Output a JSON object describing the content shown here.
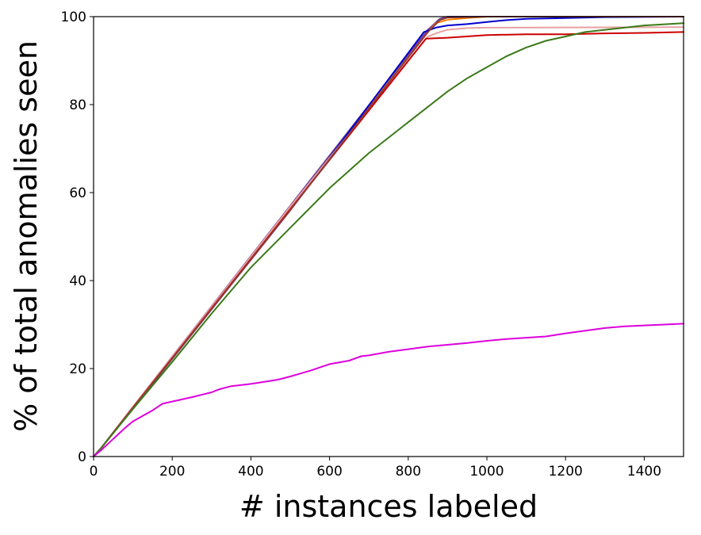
{
  "chart_data": {
    "type": "line",
    "title": "",
    "xlabel": "# instances labeled",
    "ylabel": "% of total anomalies seen",
    "xlim": [
      0,
      1500
    ],
    "ylim": [
      0,
      100
    ],
    "x_ticks": [
      0,
      200,
      400,
      600,
      800,
      1000,
      1200,
      1400
    ],
    "y_ticks": [
      0,
      20,
      40,
      60,
      80,
      100
    ],
    "grid": false,
    "legend": "none",
    "series": [
      {
        "color": "#6a3d9a",
        "points": [
          [
            0,
            0
          ],
          [
            20,
            2
          ],
          [
            100,
            11.3
          ],
          [
            500,
            57
          ],
          [
            850,
            97
          ],
          [
            880,
            99.5
          ],
          [
            900,
            100
          ],
          [
            1500,
            100
          ]
        ]
      },
      {
        "color": "#ff7f00",
        "points": [
          [
            0,
            0
          ],
          [
            20,
            2
          ],
          [
            100,
            11.2
          ],
          [
            500,
            56.5
          ],
          [
            850,
            96.5
          ],
          [
            870,
            98.5
          ],
          [
            900,
            99.3
          ],
          [
            950,
            99.7
          ],
          [
            1000,
            100
          ],
          [
            1500,
            100
          ]
        ]
      },
      {
        "color": "#0000cc",
        "points": [
          [
            0,
            0
          ],
          [
            20,
            2
          ],
          [
            100,
            11
          ],
          [
            500,
            56
          ],
          [
            840,
            96.5
          ],
          [
            870,
            97.5
          ],
          [
            900,
            98
          ],
          [
            950,
            98.3
          ],
          [
            1000,
            98.8
          ],
          [
            1050,
            99.2
          ],
          [
            1100,
            99.5
          ],
          [
            1200,
            99.7
          ],
          [
            1300,
            99.9
          ],
          [
            1500,
            100
          ]
        ]
      },
      {
        "color": "#e8a0a0",
        "points": [
          [
            0,
            0
          ],
          [
            20,
            2
          ],
          [
            100,
            11.3
          ],
          [
            500,
            56.8
          ],
          [
            850,
            95.5
          ],
          [
            880,
            96.5
          ],
          [
            900,
            97
          ],
          [
            950,
            97.4
          ],
          [
            1000,
            97.5
          ],
          [
            1500,
            97.6
          ]
        ]
      },
      {
        "color": "#cc0000",
        "points": [
          [
            0,
            0
          ],
          [
            20,
            2
          ],
          [
            100,
            11.1
          ],
          [
            500,
            56.2
          ],
          [
            845,
            95
          ],
          [
            900,
            95.2
          ],
          [
            1000,
            95.8
          ],
          [
            1100,
            96
          ],
          [
            1200,
            96
          ],
          [
            1300,
            96.2
          ],
          [
            1400,
            96.3
          ],
          [
            1500,
            96.5
          ]
        ]
      },
      {
        "color": "#8b3a3a",
        "points": [
          [
            0,
            0
          ],
          [
            20,
            2
          ],
          [
            100,
            11
          ],
          [
            500,
            56
          ],
          [
            850,
            96.5
          ],
          [
            880,
            99.2
          ],
          [
            900,
            99.8
          ],
          [
            1000,
            100
          ],
          [
            1500,
            100
          ]
        ]
      },
      {
        "color": "#3b7a1a",
        "points": [
          [
            0,
            0
          ],
          [
            20,
            2
          ],
          [
            100,
            10.8
          ],
          [
            200,
            21.5
          ],
          [
            300,
            32.5
          ],
          [
            400,
            43
          ],
          [
            500,
            52
          ],
          [
            600,
            61
          ],
          [
            700,
            69
          ],
          [
            800,
            76
          ],
          [
            850,
            79.5
          ],
          [
            900,
            83
          ],
          [
            950,
            86
          ],
          [
            1000,
            88.5
          ],
          [
            1050,
            91
          ],
          [
            1100,
            93
          ],
          [
            1150,
            94.5
          ],
          [
            1200,
            95.5
          ],
          [
            1250,
            96.5
          ],
          [
            1300,
            97
          ],
          [
            1400,
            98
          ],
          [
            1500,
            98.5
          ]
        ]
      },
      {
        "color": "#dd00dd",
        "points": [
          [
            0,
            0
          ],
          [
            20,
            1.5
          ],
          [
            50,
            4
          ],
          [
            80,
            6.5
          ],
          [
            100,
            8
          ],
          [
            150,
            10.5
          ],
          [
            175,
            12
          ],
          [
            200,
            12.5
          ],
          [
            250,
            13.5
          ],
          [
            300,
            14.6
          ],
          [
            320,
            15.3
          ],
          [
            350,
            16
          ],
          [
            400,
            16.5
          ],
          [
            450,
            17.2
          ],
          [
            470,
            17.5
          ],
          [
            500,
            18.2
          ],
          [
            550,
            19.5
          ],
          [
            600,
            21
          ],
          [
            650,
            21.8
          ],
          [
            680,
            22.8
          ],
          [
            700,
            23
          ],
          [
            750,
            23.8
          ],
          [
            800,
            24.4
          ],
          [
            850,
            25
          ],
          [
            900,
            25.4
          ],
          [
            950,
            25.8
          ],
          [
            1000,
            26.3
          ],
          [
            1050,
            26.7
          ],
          [
            1100,
            27
          ],
          [
            1150,
            27.3
          ],
          [
            1200,
            28
          ],
          [
            1250,
            28.6
          ],
          [
            1300,
            29.2
          ],
          [
            1350,
            29.6
          ],
          [
            1400,
            29.8
          ],
          [
            1450,
            30
          ],
          [
            1500,
            30.2
          ]
        ]
      }
    ]
  }
}
